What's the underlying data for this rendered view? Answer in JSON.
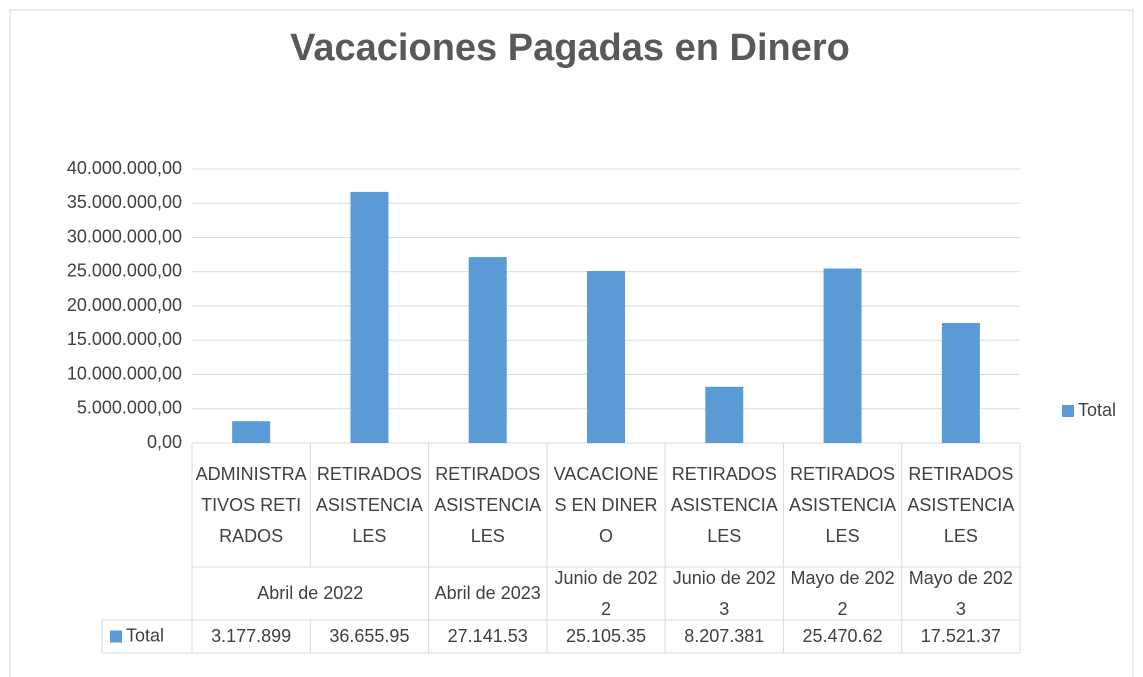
{
  "chart_data": {
    "type": "bar",
    "title": "Vacaciones Pagadas en Dinero",
    "categories": [
      "ADMINISTRATIVOS RETIRADOS",
      "RETIRADOS ASISTENCIALES",
      "RETIRADOS ASISTENCIALES",
      "VACACIONES EN DINERO",
      "RETIRADOS ASISTENCIALES",
      "RETIRADOS ASISTENCIALES",
      "RETIRADOS ASISTENCIALES"
    ],
    "category_groups": [
      "Abril de 2022",
      "Abril de 2022",
      "Abril de 2023",
      "Junio de 2022",
      "Junio de 2023",
      "Mayo de 2022",
      "Mayo de 2023"
    ],
    "series": [
      {
        "name": "Total",
        "color": "#5b9bd5",
        "values": [
          3177899,
          36655950,
          27141530,
          25105350,
          8207381,
          25470620,
          17521370
        ],
        "value_labels": [
          "3.177.899",
          "36.655.95",
          "27.141.53",
          "25.105.35",
          "8.207.381",
          "25.470.62",
          "17.521.37"
        ]
      }
    ],
    "ylim": [
      0,
      40000000
    ],
    "yticks": [
      {
        "value": 0,
        "label": "0,00"
      },
      {
        "value": 5000000,
        "label": "5.000.000,00"
      },
      {
        "value": 10000000,
        "label": "10.000.000,00"
      },
      {
        "value": 15000000,
        "label": "15.000.000,00"
      },
      {
        "value": 20000000,
        "label": "20.000.000,00"
      },
      {
        "value": 25000000,
        "label": "25.000.000,00"
      },
      {
        "value": 30000000,
        "label": "30.000.000,00"
      },
      {
        "value": 35000000,
        "label": "35.000.000,00"
      },
      {
        "value": 40000000,
        "label": "40.000.000,00"
      }
    ],
    "grid": true,
    "legend": "right",
    "data_table": true
  }
}
